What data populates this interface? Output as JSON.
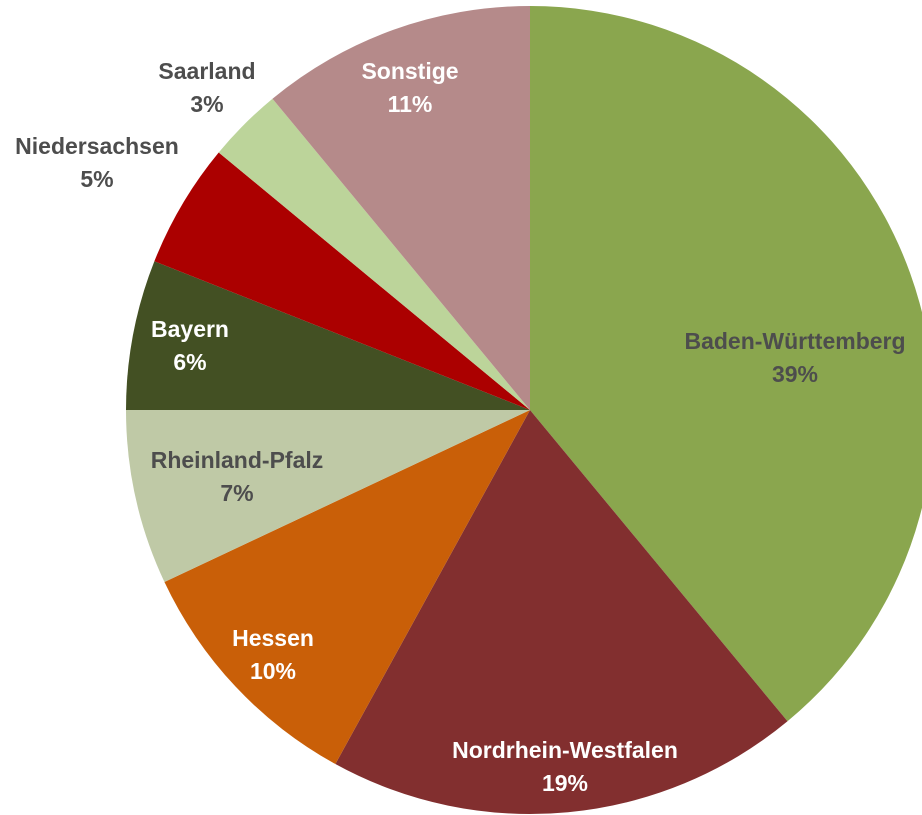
{
  "chart_data": {
    "type": "pie",
    "categories": [
      "Baden-Württemberg",
      "Nordrhein-Westfalen",
      "Hessen",
      "Rheinland-Pfalz",
      "Bayern",
      "Niedersachsen",
      "Saarland",
      "Sonstige"
    ],
    "values": [
      39,
      19,
      10,
      7,
      6,
      5,
      3,
      11
    ],
    "value_labels": [
      "39%",
      "19%",
      "10%",
      "7%",
      "6%",
      "5%",
      "3%",
      "11%"
    ],
    "colors": [
      "#8aa64e",
      "#822f2f",
      "#c95f08",
      "#bfc9a6",
      "#435023",
      "#ab0000",
      "#bcd49a",
      "#b58a8a"
    ],
    "label_colors": [
      "#4d4d4d",
      "#ffffff",
      "#ffffff",
      "#4d4d4d",
      "#ffffff",
      "#4d4d4d",
      "#4d4d4d",
      "#ffffff"
    ]
  }
}
